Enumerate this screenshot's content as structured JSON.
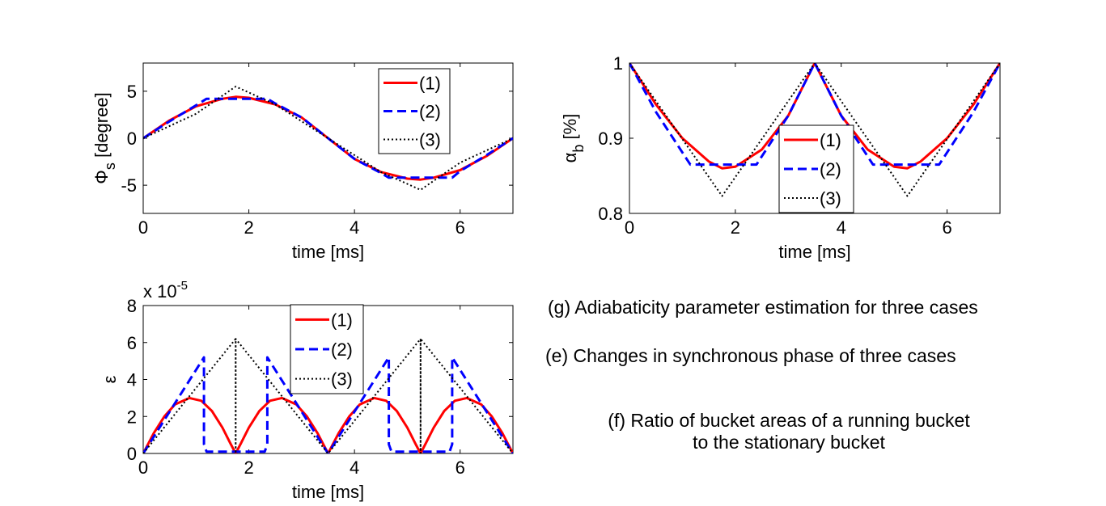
{
  "captions": {
    "g": "(g) Adiabaticity parameter estimation for three cases",
    "e": "(e) Changes in synchronous phase of three cases",
    "f_line1": "(f) Ratio of bucket areas of a running bucket",
    "f_line2": "to the stationary bucket"
  },
  "chart_data": [
    {
      "id": "phi",
      "type": "line",
      "title": "",
      "xlabel": "time [ms]",
      "ylabel": "Φs [degree]",
      "xlim": [
        0,
        7
      ],
      "ylim": [
        -8,
        8
      ],
      "xticks": [
        0,
        2,
        4,
        6
      ],
      "yticks": [
        -5,
        0,
        5
      ],
      "grid": false,
      "legend": "top-right",
      "series": [
        {
          "name": "(1)",
          "color": "#ff0000",
          "style": "solid",
          "x": [
            0,
            0.5,
            1.0,
            1.5,
            1.75,
            2.0,
            2.5,
            3.0,
            3.5,
            4.0,
            4.5,
            5.0,
            5.25,
            5.5,
            6.0,
            6.5,
            7.0
          ],
          "y": [
            0,
            1.9,
            3.4,
            4.2,
            4.4,
            4.3,
            3.6,
            2.2,
            0,
            -2.2,
            -3.6,
            -4.3,
            -4.4,
            -4.2,
            -3.4,
            -1.9,
            0
          ]
        },
        {
          "name": "(2)",
          "color": "#0000ff",
          "style": "dashed",
          "x": [
            0,
            0.5,
            1.0,
            1.2,
            2.35,
            2.5,
            3.0,
            3.5,
            4.0,
            4.5,
            4.65,
            5.85,
            6.0,
            6.5,
            7.0
          ],
          "y": [
            0,
            1.8,
            3.5,
            4.2,
            4.2,
            3.7,
            2.2,
            0,
            -2.2,
            -3.7,
            -4.2,
            -4.2,
            -3.5,
            -1.8,
            0
          ]
        },
        {
          "name": "(3)",
          "color": "#000000",
          "style": "dotted",
          "x": [
            0,
            1.0,
            1.75,
            2.5,
            3.5,
            4.5,
            5.25,
            6.0,
            7.0
          ],
          "y": [
            0,
            2.6,
            5.5,
            3.6,
            0,
            -3.6,
            -5.5,
            -2.6,
            0
          ]
        }
      ]
    },
    {
      "id": "alpha",
      "type": "line",
      "title": "",
      "xlabel": "time [ms]",
      "ylabel": "αb [%]",
      "xlim": [
        0,
        7
      ],
      "ylim": [
        0.8,
        1.0
      ],
      "xticks": [
        0,
        2,
        4,
        6
      ],
      "yticks": [
        0.8,
        0.9,
        1.0
      ],
      "ytick_labels": [
        "0.8",
        "0.9",
        "1"
      ],
      "grid": false,
      "legend": "bottom-center",
      "series": [
        {
          "name": "(1)",
          "color": "#ff0000",
          "style": "solid",
          "x": [
            0,
            0.5,
            1.0,
            1.5,
            1.75,
            2.0,
            2.5,
            3.0,
            3.5,
            4.0,
            4.5,
            5.0,
            5.25,
            5.5,
            6.0,
            6.5,
            7.0
          ],
          "y": [
            1.0,
            0.945,
            0.9,
            0.869,
            0.86,
            0.862,
            0.885,
            0.93,
            1.0,
            0.93,
            0.885,
            0.862,
            0.86,
            0.869,
            0.9,
            0.945,
            1.0
          ]
        },
        {
          "name": "(2)",
          "color": "#0000ff",
          "style": "dashed",
          "x": [
            0,
            0.5,
            1.15,
            2.4,
            3.0,
            3.5,
            4.0,
            4.6,
            5.85,
            6.5,
            7.0
          ],
          "y": [
            1.0,
            0.935,
            0.865,
            0.865,
            0.93,
            1.0,
            0.93,
            0.865,
            0.865,
            0.935,
            1.0
          ]
        },
        {
          "name": "(3)",
          "color": "#000000",
          "style": "dotted",
          "x": [
            0,
            1.75,
            3.5,
            5.25,
            7.0
          ],
          "y": [
            1.0,
            0.823,
            1.0,
            0.823,
            1.0
          ]
        }
      ]
    },
    {
      "id": "eps",
      "type": "line",
      "title": "",
      "xlabel": "time [ms]",
      "ylabel": "ε",
      "exponent_label": "x 10",
      "exponent_power": "-5",
      "xlim": [
        0,
        7
      ],
      "ylim": [
        0,
        8
      ],
      "xticks": [
        0,
        2,
        4,
        6
      ],
      "yticks": [
        0,
        2,
        4,
        6,
        8
      ],
      "grid": false,
      "legend": "top-center",
      "series": [
        {
          "name": "(1)",
          "color": "#ff0000",
          "style": "solid",
          "x": [
            0,
            0.2,
            0.4,
            0.6,
            0.875,
            1.1,
            1.3,
            1.5,
            1.65,
            1.75,
            1.85,
            2.0,
            2.2,
            2.4,
            2.625,
            2.9,
            3.1,
            3.3,
            3.5,
            3.7,
            3.9,
            4.1,
            4.375,
            4.6,
            4.8,
            5.0,
            5.15,
            5.25,
            5.35,
            5.5,
            5.7,
            5.9,
            6.125,
            6.4,
            6.6,
            6.8,
            7.0
          ],
          "y": [
            0,
            1.1,
            2.0,
            2.65,
            3.0,
            2.85,
            2.3,
            1.4,
            0.55,
            0,
            0.55,
            1.4,
            2.3,
            2.85,
            3.0,
            2.65,
            2.0,
            1.1,
            0,
            1.1,
            2.0,
            2.65,
            3.0,
            2.85,
            2.3,
            1.4,
            0.55,
            0,
            0.55,
            1.4,
            2.3,
            2.85,
            3.0,
            2.65,
            2.0,
            1.1,
            0
          ]
        },
        {
          "name": "(2)",
          "color": "#0000ff",
          "style": "dashed",
          "x": [
            0,
            1.15,
            1.15,
            1.2,
            2.3,
            2.35,
            2.35,
            3.5,
            4.65,
            4.65,
            4.7,
            5.8,
            5.85,
            5.85,
            7.0
          ],
          "y": [
            0,
            5.2,
            0.5,
            0.1,
            0.1,
            0.5,
            5.2,
            0,
            5.2,
            0.5,
            0.1,
            0.1,
            0.5,
            5.2,
            0
          ]
        },
        {
          "name": "(3)",
          "color": "#000000",
          "style": "dotted",
          "x": [
            0,
            1.75,
            1.75,
            1.75,
            3.5,
            5.25,
            5.25,
            5.25,
            7.0
          ],
          "y": [
            0,
            6.2,
            0,
            6.2,
            0,
            6.2,
            0,
            6.2,
            0
          ]
        }
      ]
    }
  ]
}
